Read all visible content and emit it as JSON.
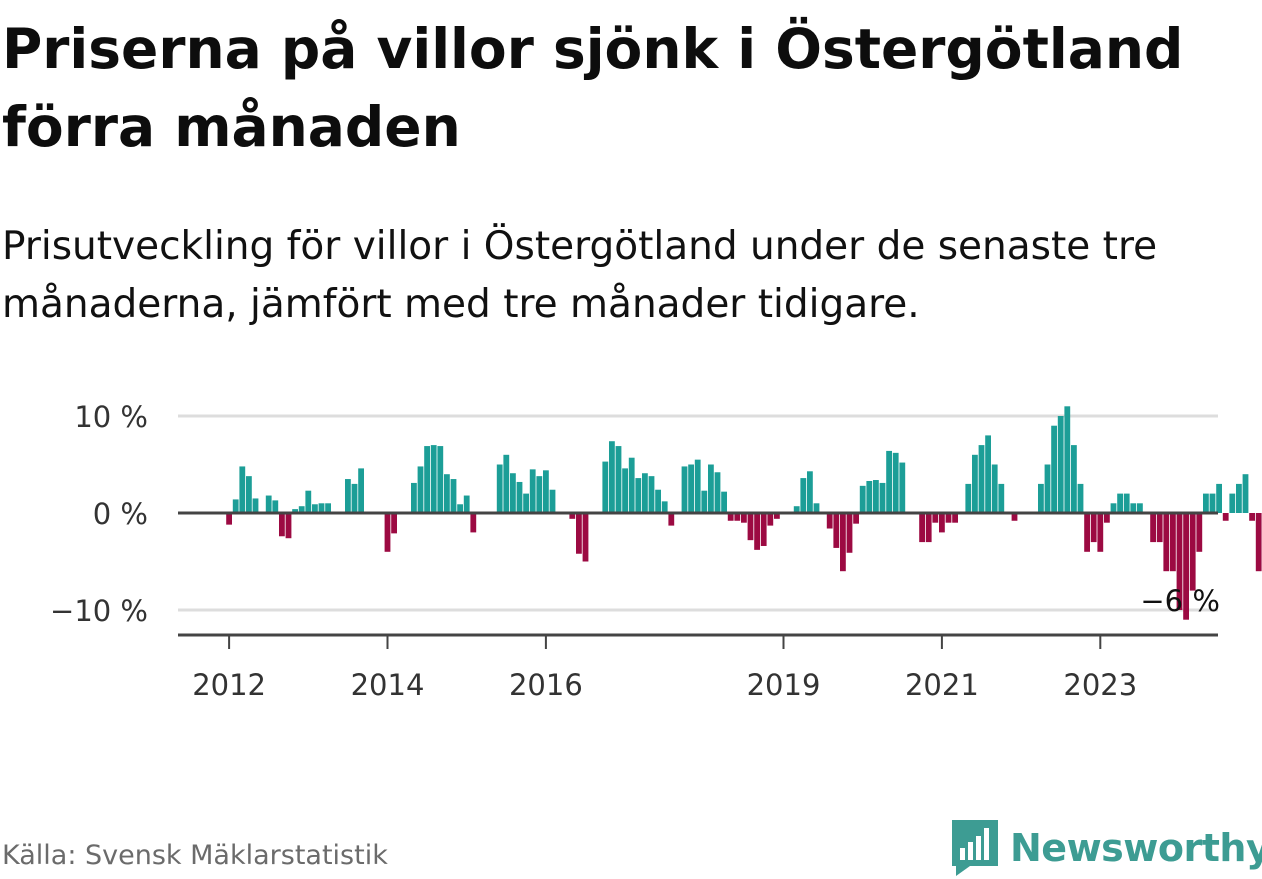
{
  "title": "Priserna på villor sjönk i Östergötland förra månaden",
  "subtitle": "Prisutveckling för villor i Östergötland under de senaste tre månaderna, jämfört med tre månader tidigare.",
  "source": "Källa: Svensk Mäklarstatistik",
  "brand": {
    "name": "Newsworthy",
    "icon": "newsworthy-logo-icon",
    "color": "#3d9c93"
  },
  "colors": {
    "positive": "#1c9e97",
    "negative": "#9c0a42",
    "zero_line": "#444444",
    "grid": "#dddddd",
    "axis_text": "#333333"
  },
  "chart_data": {
    "type": "bar",
    "title": "",
    "xlabel": "",
    "ylabel": "",
    "ylim": [
      -12,
      10
    ],
    "y_ticks": [
      {
        "value": 10,
        "label": "10 %"
      },
      {
        "value": 0,
        "label": "0 %"
      },
      {
        "value": -10,
        "label": "−10 %"
      }
    ],
    "x_ticks": [
      {
        "value": "2012-01",
        "label": "2012"
      },
      {
        "value": "2014-01",
        "label": "2014"
      },
      {
        "value": "2016-01",
        "label": "2016"
      },
      {
        "value": "2019-01",
        "label": "2019"
      },
      {
        "value": "2021-01",
        "label": "2021"
      },
      {
        "value": "2023-01",
        "label": "2023"
      }
    ],
    "start_month": "2011-07",
    "grid": true,
    "annotation": {
      "label": "−6 %",
      "month": "2023-12",
      "value": -6
    },
    "series": [
      {
        "values": [
          0.0,
          0.0,
          0.0,
          0.0,
          0.0,
          0.0,
          -1.2,
          1.4,
          4.8,
          3.8,
          1.5,
          0.0,
          1.8,
          1.3,
          -2.4,
          -2.6,
          0.4,
          0.7,
          2.3,
          0.9,
          1.0,
          1.0,
          0.0,
          0.0,
          3.5,
          3.0,
          4.6,
          0.0,
          0.0,
          0.0,
          -4.0,
          -2.1,
          0.0,
          0.0,
          3.1,
          4.8,
          6.9,
          7.0,
          6.9,
          4.0,
          3.5,
          0.9,
          1.8,
          -2.0,
          0.0,
          0.0,
          0.0,
          5.0,
          6.0,
          4.1,
          3.2,
          2.0,
          4.5,
          3.8,
          4.4,
          2.4,
          0.0,
          0.0,
          -0.6,
          -4.2,
          -5.0,
          0.0,
          0.0,
          5.3,
          7.4,
          6.9,
          4.6,
          5.7,
          3.6,
          4.1,
          3.8,
          2.4,
          1.2,
          -1.3,
          0.0,
          4.8,
          5.0,
          5.5,
          2.3,
          5.0,
          4.2,
          2.2,
          -0.8,
          -0.8,
          -1.0,
          -2.8,
          -3.8,
          -3.4,
          -1.3,
          -0.6,
          0.0,
          0.0,
          0.7,
          3.6,
          4.3,
          1.0,
          0.0,
          -1.6,
          -3.6,
          -6.0,
          -4.1,
          -1.1,
          2.8,
          3.3,
          3.4,
          3.1,
          6.4,
          6.2,
          5.2,
          0.0,
          0.0,
          -3.0,
          -3.0,
          -1.0,
          -2.0,
          -1.0,
          -1.0,
          0.0,
          3.0,
          6.0,
          7.0,
          8.0,
          5.0,
          3.0,
          0.0,
          -0.8,
          0.0,
          0.0,
          0.0,
          3.0,
          5.0,
          9.0,
          10.0,
          11.0,
          7.0,
          3.0,
          -4.0,
          -3.0,
          -4.0,
          -1.0,
          1.0,
          2.0,
          2.0,
          1.0,
          1.0,
          0.0,
          -3.0,
          -3.0,
          -6.0,
          -6.0,
          -10.0,
          -11.0,
          -8.0,
          -4.0,
          2.0,
          2.0,
          3.0,
          -0.8,
          2.0,
          3.0,
          4.0,
          -0.8,
          -6.0
        ]
      }
    ]
  }
}
